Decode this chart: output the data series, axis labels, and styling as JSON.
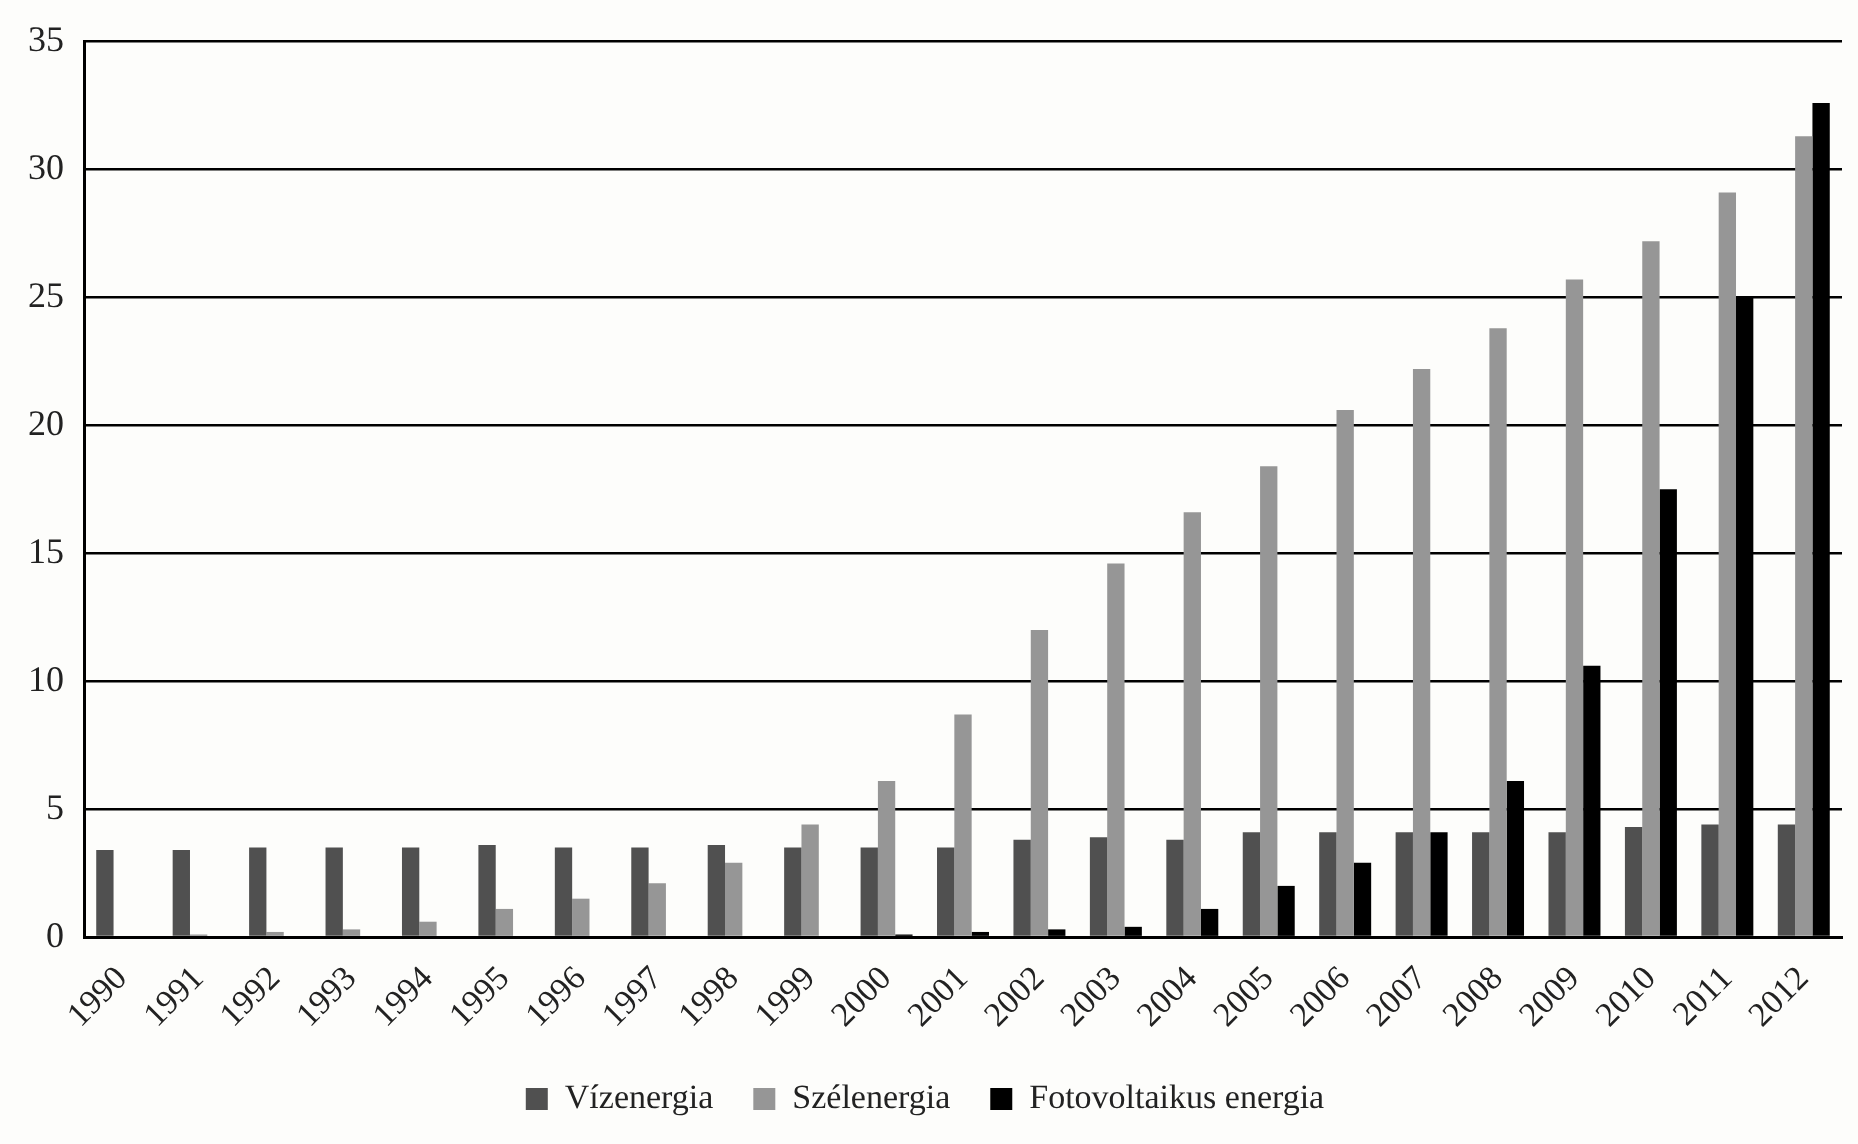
{
  "chart_data": {
    "type": "bar",
    "categories": [
      "1990",
      "1991",
      "1992",
      "1993",
      "1994",
      "1995",
      "1996",
      "1997",
      "1998",
      "1999",
      "2000",
      "2001",
      "2002",
      "2003",
      "2004",
      "2005",
      "2006",
      "2007",
      "2008",
      "2009",
      "2010",
      "2011",
      "2012"
    ],
    "series": [
      {
        "name": "Vízenergia",
        "color": "#505050",
        "values": [
          3.4,
          3.4,
          3.5,
          3.5,
          3.5,
          3.6,
          3.5,
          3.5,
          3.6,
          3.5,
          3.5,
          3.5,
          3.8,
          3.9,
          3.8,
          4.1,
          4.1,
          4.1,
          4.1,
          4.1,
          4.3,
          4.4,
          4.4
        ]
      },
      {
        "name": "Szélenergia",
        "color": "#969696",
        "values": [
          0,
          0.1,
          0.2,
          0.3,
          0.6,
          1.1,
          1.5,
          2.1,
          2.9,
          4.4,
          6.1,
          8.7,
          12.0,
          14.6,
          16.6,
          18.4,
          20.6,
          22.2,
          23.8,
          25.7,
          27.2,
          29.1,
          31.3
        ]
      },
      {
        "name": "Fotovoltaikus energia",
        "color": "#000000",
        "values": [
          0,
          0,
          0,
          0,
          0,
          0,
          0,
          0,
          0,
          0,
          0.1,
          0.2,
          0.3,
          0.4,
          1.1,
          2.0,
          2.9,
          4.1,
          6.1,
          10.6,
          17.5,
          25.0,
          32.6
        ]
      }
    ],
    "ylim": [
      0,
      35
    ],
    "yticks": [
      0,
      5,
      10,
      15,
      20,
      25,
      30,
      35
    ],
    "grid": "y",
    "legend": "bottom"
  }
}
